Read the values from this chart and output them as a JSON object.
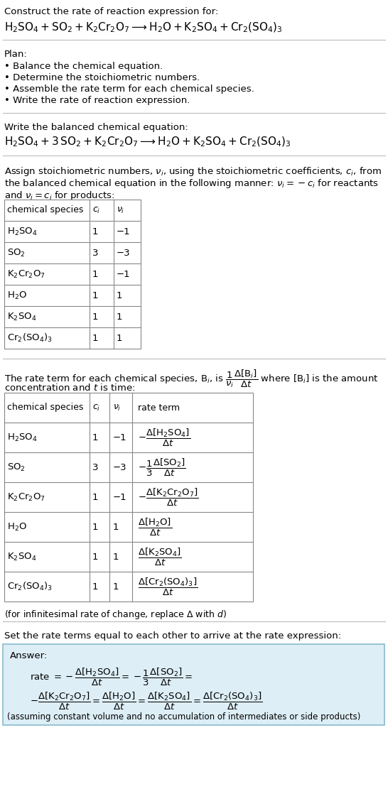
{
  "title_text": "Construct the rate of reaction expression for:",
  "reaction_unbalanced": "$\\mathrm{H_2SO_4 + SO_2 + K_2Cr_2O_7 \\longrightarrow H_2O + K_2SO_4 + Cr_2(SO_4)_3}$",
  "plan_header": "Plan:",
  "plan_items": [
    "• Balance the chemical equation.",
    "• Determine the stoichiometric numbers.",
    "• Assemble the rate term for each chemical species.",
    "• Write the rate of reaction expression."
  ],
  "balanced_header": "Write the balanced chemical equation:",
  "reaction_balanced": "$\\mathrm{H_2SO_4 + 3\\,SO_2 + K_2Cr_2O_7 \\longrightarrow H_2O + K_2SO_4 + Cr_2(SO_4)_3}$",
  "stoich_intro_1": "Assign stoichiometric numbers, $\\nu_i$, using the stoichiometric coefficients, $c_i$, from",
  "stoich_intro_2": "the balanced chemical equation in the following manner: $\\nu_i = -c_i$ for reactants",
  "stoich_intro_3": "and $\\nu_i = c_i$ for products:",
  "table1_headers": [
    "chemical species",
    "$c_i$",
    "$\\nu_i$"
  ],
  "table1_rows": [
    [
      "$\\mathrm{H_2SO_4}$",
      "1",
      "−1"
    ],
    [
      "$\\mathrm{SO_2}$",
      "3",
      "−3"
    ],
    [
      "$\\mathrm{K_2Cr_2O_7}$",
      "1",
      "−1"
    ],
    [
      "$\\mathrm{H_2O}$",
      "1",
      "1"
    ],
    [
      "$\\mathrm{K_2SO_4}$",
      "1",
      "1"
    ],
    [
      "$\\mathrm{Cr_2(SO_4)_3}$",
      "1",
      "1"
    ]
  ],
  "rate_intro_1": "The rate term for each chemical species, $\\mathrm{B}_i$, is $\\dfrac{1}{\\nu_i}\\dfrac{\\Delta[\\mathrm{B}_i]}{\\Delta t}$ where $[\\mathrm{B}_i]$ is the amount",
  "rate_intro_2": "concentration and $t$ is time:",
  "table2_headers": [
    "chemical species",
    "$c_i$",
    "$\\nu_i$",
    "rate term"
  ],
  "table2_rows": [
    [
      "$\\mathrm{H_2SO_4}$",
      "1",
      "−1",
      "$-\\dfrac{\\Delta[\\mathrm{H_2SO_4}]}{\\Delta t}$"
    ],
    [
      "$\\mathrm{SO_2}$",
      "3",
      "−3",
      "$-\\dfrac{1}{3}\\dfrac{\\Delta[\\mathrm{SO_2}]}{\\Delta t}$"
    ],
    [
      "$\\mathrm{K_2Cr_2O_7}$",
      "1",
      "−1",
      "$-\\dfrac{\\Delta[\\mathrm{K_2Cr_2O_7}]}{\\Delta t}$"
    ],
    [
      "$\\mathrm{H_2O}$",
      "1",
      "1",
      "$\\dfrac{\\Delta[\\mathrm{H_2O}]}{\\Delta t}$"
    ],
    [
      "$\\mathrm{K_2SO_4}$",
      "1",
      "1",
      "$\\dfrac{\\Delta[\\mathrm{K_2SO_4}]}{\\Delta t}$"
    ],
    [
      "$\\mathrm{Cr_2(SO_4)_3}$",
      "1",
      "1",
      "$\\dfrac{\\Delta[\\mathrm{Cr_2(SO_4)_3}]}{\\Delta t}$"
    ]
  ],
  "infinitesimal_note": "(for infinitesimal rate of change, replace Δ with $d$)",
  "set_rate_text": "Set the rate terms equal to each other to arrive at the rate expression:",
  "answer_label": "Answer:",
  "answer_line1": "rate $= -\\dfrac{\\Delta[\\mathrm{H_2SO_4}]}{\\Delta t} = -\\dfrac{1}{3}\\dfrac{\\Delta[\\mathrm{SO_2}]}{\\Delta t} =$",
  "answer_line2": "$-\\dfrac{\\Delta[\\mathrm{K_2Cr_2O_7}]}{\\Delta t} = \\dfrac{\\Delta[\\mathrm{H_2O}]}{\\Delta t} = \\dfrac{\\Delta[\\mathrm{K_2SO_4}]}{\\Delta t} = \\dfrac{\\Delta[\\mathrm{Cr_2(SO_4)_3}]}{\\Delta t}$",
  "answer_note": "(assuming constant volume and no accumulation of intermediates or side products)",
  "bg_color": "#ffffff",
  "answer_bg_color": "#ddeef6",
  "line_color": "#999999",
  "answer_border_color": "#88bbcc"
}
